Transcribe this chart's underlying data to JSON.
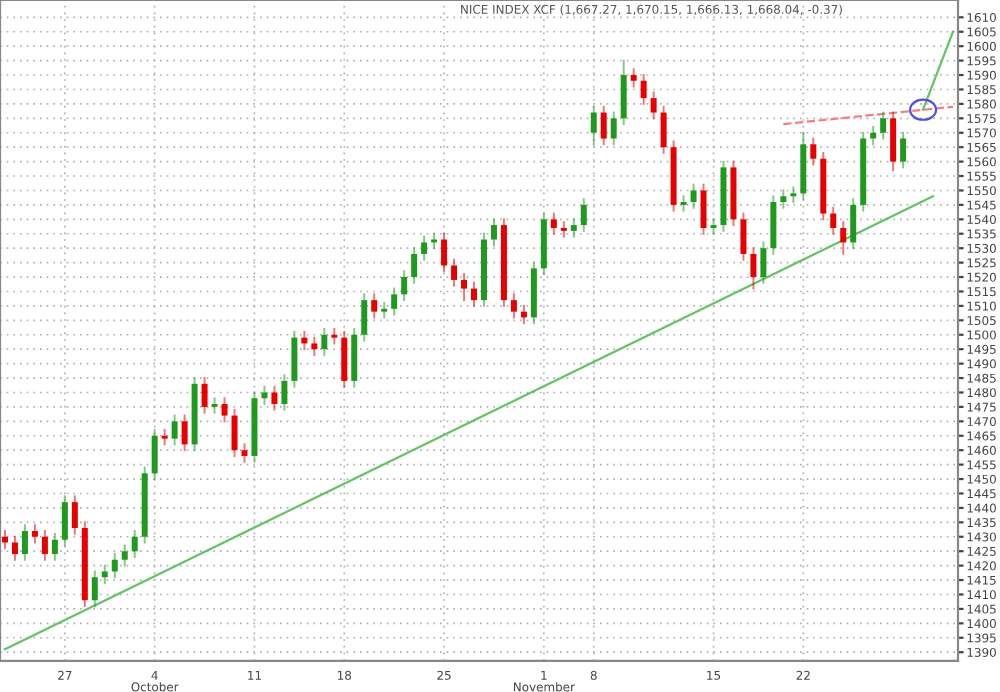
{
  "chart_data": {
    "type": "candlestick",
    "title": "NICE INDEX XCF (1,667.27, 1,670.15, 1,666.13, 1,668.04, -0.37)",
    "categories": [
      null,
      null,
      null,
      null,
      null,
      null,
      "27",
      null,
      null,
      null,
      null,
      null,
      null,
      null,
      null,
      "4\nOctober",
      null,
      null,
      null,
      null,
      null,
      null,
      null,
      null,
      null,
      "11",
      null,
      null,
      null,
      null,
      null,
      null,
      null,
      null,
      "18",
      null,
      null,
      null,
      null,
      null,
      null,
      null,
      null,
      null,
      "25",
      null,
      null,
      null,
      null,
      null,
      null,
      null,
      null,
      null,
      "1\nNovember",
      null,
      null,
      null,
      null,
      "8",
      null,
      null,
      null,
      null,
      null,
      null,
      null,
      null,
      null,
      null,
      null,
      "15",
      null,
      null,
      null,
      null,
      null,
      null,
      null,
      null,
      "22",
      null,
      null,
      null,
      null,
      null,
      null,
      null,
      null,
      null,
      null,
      null,
      null,
      null,
      null,
      null
    ],
    "colors": [
      "#e80000",
      "#e80000",
      "#1f9a1f",
      "#e80000",
      "#e80000",
      "#1f9a1f",
      "#1f9a1f",
      "#e80000",
      "#e80000",
      "#1f9a1f",
      "#1f9a1f",
      "#1f9a1f",
      "#1f9a1f",
      "#1f9a1f",
      "#1f9a1f",
      "#1f9a1f",
      "#e80000",
      "#1f9a1f",
      "#e80000",
      "#1f9a1f",
      "#e80000",
      "#1f9a1f",
      "#e80000",
      "#e80000",
      "#e80000",
      "#1f9a1f",
      "#1f9a1f",
      "#e80000",
      "#1f9a1f",
      "#1f9a1f",
      "#e80000",
      "#e80000",
      "#1f9a1f",
      "#e80000",
      "#e80000",
      "#1f9a1f",
      "#1f9a1f",
      "#e80000",
      "#1f9a1f",
      "#1f9a1f",
      "#1f9a1f",
      "#1f9a1f",
      "#1f9a1f",
      "#1f9a1f",
      "#e80000",
      "#e80000",
      "#e80000",
      "#e80000",
      "#1f9a1f",
      "#1f9a1f",
      "#e80000",
      "#e80000",
      "#e80000",
      "#1f9a1f",
      "#1f9a1f",
      "#e80000",
      "#e80000",
      "#1f9a1f",
      "#1f9a1f",
      "#1f9a1f",
      "#e80000",
      "#1f9a1f",
      "#1f9a1f",
      "#e80000",
      "#e80000",
      "#e80000",
      "#e80000",
      "#e80000",
      "#1f9a1f",
      "#1f9a1f",
      "#e80000",
      "#1f9a1f",
      "#1f9a1f",
      "#e80000",
      "#e80000",
      "#e80000",
      "#1f9a1f",
      "#1f9a1f",
      "#1f9a1f",
      "#1f9a1f",
      "#1f9a1f",
      "#e80000",
      "#e80000",
      "#e80000",
      "#e80000",
      "#1f9a1f",
      "#1f9a1f",
      "#1f9a1f",
      "#1f9a1f",
      "#e80000",
      "#1f9a1f",
      null,
      null,
      null,
      null,
      null
    ],
    "ohlc": [
      [
        1430,
        1432,
        1426,
        1428
      ],
      [
        1428,
        1430,
        1422,
        1424
      ],
      [
        1424,
        1434,
        1422,
        1432
      ],
      [
        1432,
        1434,
        1428,
        1430
      ],
      [
        1430,
        1432,
        1422,
        1424
      ],
      [
        1424,
        1431,
        1422,
        1429
      ],
      [
        1429,
        1444,
        1427,
        1442
      ],
      [
        1442,
        1444,
        1431,
        1433
      ],
      [
        1433,
        1435,
        1406,
        1408
      ],
      [
        1408,
        1418,
        1406,
        1416
      ],
      [
        1416,
        1420,
        1414,
        1418
      ],
      [
        1418,
        1424,
        1416,
        1422
      ],
      [
        1422,
        1427,
        1420,
        1425
      ],
      [
        1425,
        1432,
        1423,
        1430
      ],
      [
        1430,
        1454,
        1428,
        1452
      ],
      [
        1452,
        1467,
        1450,
        1465
      ],
      [
        1465,
        1467,
        1462,
        1464
      ],
      [
        1464,
        1472,
        1462,
        1470
      ],
      [
        1470,
        1472,
        1460,
        1462
      ],
      [
        1462,
        1485,
        1460,
        1483
      ],
      [
        1483,
        1485,
        1473,
        1475
      ],
      [
        1475,
        1478,
        1473,
        1476
      ],
      [
        1476,
        1478,
        1470,
        1472
      ],
      [
        1472,
        1474,
        1458,
        1460
      ],
      [
        1460,
        1462,
        1456,
        1458
      ],
      [
        1458,
        1480,
        1456,
        1478
      ],
      [
        1478,
        1482,
        1476,
        1480
      ],
      [
        1480,
        1482,
        1474,
        1476
      ],
      [
        1476,
        1486,
        1474,
        1484
      ],
      [
        1484,
        1501,
        1482,
        1499
      ],
      [
        1499,
        1501,
        1495,
        1497
      ],
      [
        1497,
        1499,
        1493,
        1495
      ],
      [
        1495,
        1502,
        1493,
        1500
      ],
      [
        1500,
        1502,
        1497,
        1499
      ],
      [
        1499,
        1501,
        1482,
        1484
      ],
      [
        1484,
        1502,
        1482,
        1500
      ],
      [
        1500,
        1514,
        1498,
        1512
      ],
      [
        1512,
        1514,
        1506,
        1508
      ],
      [
        1508,
        1511,
        1506,
        1509
      ],
      [
        1509,
        1516,
        1507,
        1514
      ],
      [
        1514,
        1522,
        1512,
        1520
      ],
      [
        1520,
        1530,
        1518,
        1528
      ],
      [
        1528,
        1534,
        1526,
        1532
      ],
      [
        1532,
        1535,
        1530,
        1533
      ],
      [
        1533,
        1535,
        1522,
        1524
      ],
      [
        1524,
        1526,
        1517,
        1519
      ],
      [
        1519,
        1521,
        1512,
        1516
      ],
      [
        1516,
        1518,
        1510,
        1512
      ],
      [
        1512,
        1535,
        1510,
        1533
      ],
      [
        1533,
        1540,
        1531,
        1538
      ],
      [
        1538,
        1540,
        1510,
        1512
      ],
      [
        1512,
        1514,
        1506,
        1508
      ],
      [
        1508,
        1510,
        1504,
        1506
      ],
      [
        1506,
        1525,
        1504,
        1523
      ],
      [
        1523,
        1542,
        1521,
        1540
      ],
      [
        1540,
        1542,
        1535,
        1537
      ],
      [
        1537,
        1539,
        1534,
        1536
      ],
      [
        1536,
        1540,
        1534,
        1538
      ],
      [
        1538,
        1547,
        1536,
        1545
      ],
      [
        1570,
        1579,
        1566,
        1577
      ],
      [
        1577,
        1579,
        1566,
        1568
      ],
      [
        1568,
        1577,
        1566,
        1575
      ],
      [
        1575,
        1595,
        1573,
        1590
      ],
      [
        1590,
        1592,
        1586,
        1588
      ],
      [
        1588,
        1590,
        1580,
        1582
      ],
      [
        1582,
        1584,
        1575,
        1577
      ],
      [
        1577,
        1579,
        1563,
        1565
      ],
      [
        1565,
        1567,
        1543,
        1545
      ],
      [
        1545,
        1548,
        1543,
        1546
      ],
      [
        1546,
        1552,
        1544,
        1550
      ],
      [
        1550,
        1552,
        1535,
        1537
      ],
      [
        1537,
        1540,
        1535,
        1538
      ],
      [
        1538,
        1560,
        1536,
        1558
      ],
      [
        1558,
        1560,
        1538,
        1540
      ],
      [
        1540,
        1542,
        1526,
        1528
      ],
      [
        1528,
        1530,
        1516,
        1520
      ],
      [
        1520,
        1532,
        1518,
        1530
      ],
      [
        1530,
        1548,
        1528,
        1546
      ],
      [
        1546,
        1550,
        1544,
        1548
      ],
      [
        1548,
        1551,
        1546,
        1549
      ],
      [
        1549,
        1570,
        1547,
        1566
      ],
      [
        1566,
        1568,
        1559,
        1561
      ],
      [
        1561,
        1563,
        1540,
        1542
      ],
      [
        1542,
        1544,
        1535,
        1537
      ],
      [
        1537,
        1539,
        1528,
        1532
      ],
      [
        1532,
        1547,
        1530,
        1545
      ],
      [
        1545,
        1570,
        1543,
        1568
      ],
      [
        1568,
        1572,
        1566,
        1570
      ],
      [
        1570,
        1577,
        1568,
        1575
      ],
      [
        1575,
        1577,
        1557,
        1560
      ],
      [
        1560,
        1570,
        1558,
        1568
      ],
      null,
      null,
      null,
      null,
      null
    ],
    "series": [
      {
        "type": "line",
        "color": "#66c266",
        "line_style": "solid",
        "values": [
          1391,
          null,
          null,
          null,
          null,
          null,
          null,
          null,
          null,
          null,
          null,
          null,
          null,
          null,
          null,
          null,
          null,
          null,
          null,
          null,
          null,
          null,
          null,
          null,
          null,
          null,
          null,
          null,
          null,
          null,
          null,
          null,
          null,
          null,
          null,
          null,
          null,
          null,
          null,
          null,
          null,
          null,
          null,
          null,
          null,
          null,
          null,
          null,
          null,
          null,
          null,
          null,
          null,
          null,
          null,
          null,
          null,
          null,
          null,
          null,
          null,
          null,
          null,
          null,
          null,
          null,
          null,
          null,
          null,
          null,
          null,
          null,
          null,
          null,
          null,
          null,
          null,
          null,
          null,
          null,
          null,
          null,
          null,
          null,
          null,
          null,
          null,
          null,
          null,
          null,
          null,
          null,
          null,
          1548,
          null,
          null
        ]
      },
      {
        "type": "line",
        "color": "#66c266",
        "line_style": "solid",
        "values": [
          null,
          null,
          null,
          null,
          null,
          null,
          null,
          null,
          null,
          null,
          null,
          null,
          null,
          null,
          null,
          null,
          null,
          null,
          null,
          null,
          null,
          null,
          null,
          null,
          null,
          null,
          null,
          null,
          null,
          null,
          null,
          null,
          null,
          null,
          null,
          null,
          null,
          null,
          null,
          null,
          null,
          null,
          null,
          null,
          null,
          null,
          null,
          null,
          null,
          null,
          null,
          null,
          null,
          null,
          null,
          null,
          null,
          null,
          null,
          null,
          null,
          null,
          null,
          null,
          null,
          null,
          null,
          null,
          null,
          null,
          null,
          null,
          null,
          null,
          null,
          null,
          null,
          null,
          null,
          null,
          null,
          null,
          null,
          null,
          null,
          null,
          null,
          null,
          null,
          null,
          null,
          null,
          1578,
          null,
          null,
          1605
        ]
      },
      {
        "type": "line",
        "color": "#f08080",
        "line_style": "dashed",
        "values": [
          null,
          null,
          null,
          null,
          null,
          null,
          null,
          null,
          null,
          null,
          null,
          null,
          null,
          null,
          null,
          null,
          null,
          null,
          null,
          null,
          null,
          null,
          null,
          null,
          null,
          null,
          null,
          null,
          null,
          null,
          null,
          null,
          null,
          null,
          null,
          null,
          null,
          null,
          null,
          null,
          null,
          null,
          null,
          null,
          null,
          null,
          null,
          null,
          null,
          null,
          null,
          null,
          null,
          null,
          null,
          null,
          null,
          null,
          null,
          null,
          null,
          null,
          null,
          null,
          null,
          null,
          null,
          null,
          null,
          null,
          null,
          null,
          null,
          null,
          null,
          null,
          null,
          null,
          1573,
          null,
          null,
          null,
          null,
          null,
          null,
          null,
          null,
          null,
          null,
          null,
          null,
          null,
          null,
          null,
          null,
          1579
        ]
      }
    ],
    "ylim": [
      1387,
      1616
    ],
    "yticks": [
      1390,
      1395,
      1400,
      1405,
      1410,
      1415,
      1420,
      1425,
      1430,
      1435,
      1440,
      1445,
      1450,
      1455,
      1460,
      1465,
      1470,
      1475,
      1480,
      1485,
      1490,
      1495,
      1500,
      1505,
      1510,
      1515,
      1520,
      1525,
      1530,
      1535,
      1540,
      1545,
      1550,
      1555,
      1560,
      1565,
      1570,
      1575,
      1580,
      1585,
      1590,
      1595,
      1600,
      1605,
      1610
    ],
    "grid": true
  }
}
